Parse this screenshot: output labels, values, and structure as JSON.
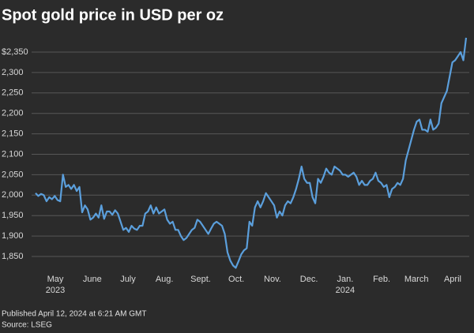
{
  "chart_data": {
    "type": "line",
    "title": "Spot gold price in USD per oz",
    "published": "Published April 12, 2024 at 6:21 AM GMT",
    "source": "Source: LSEG",
    "color": "#5b9fdc",
    "grid": true,
    "xlim": [
      0,
      157
    ],
    "ylim": [
      1810,
      2390
    ],
    "yticks": [
      {
        "value": 2350,
        "label": "$2,350"
      },
      {
        "value": 2300,
        "label": "2,300"
      },
      {
        "value": 2250,
        "label": "2,250"
      },
      {
        "value": 2200,
        "label": "2,200"
      },
      {
        "value": 2150,
        "label": "2,150"
      },
      {
        "value": 2100,
        "label": "2,100"
      },
      {
        "value": 2050,
        "label": "2,050"
      },
      {
        "value": 2000,
        "label": "2,000"
      },
      {
        "value": 1950,
        "label": "1,950"
      },
      {
        "value": 1900,
        "label": "1,900"
      },
      {
        "value": 1850,
        "label": "1,850"
      }
    ],
    "xticks": [
      {
        "value": 7.2,
        "label": "May",
        "year": "2023"
      },
      {
        "value": 20.7,
        "label": "June"
      },
      {
        "value": 33.7,
        "label": "July"
      },
      {
        "value": 47.0,
        "label": "Aug."
      },
      {
        "value": 60.2,
        "label": "Sept."
      },
      {
        "value": 73.2,
        "label": "Oct."
      },
      {
        "value": 86.4,
        "label": "Nov."
      },
      {
        "value": 99.7,
        "label": "Dec."
      },
      {
        "value": 112.9,
        "label": "Jan.",
        "year": "2024"
      },
      {
        "value": 126.2,
        "label": "Feb."
      },
      {
        "value": 138.9,
        "label": "March"
      },
      {
        "value": 152.1,
        "label": "April"
      }
    ],
    "values": [
      2005,
      1998,
      2003,
      2000,
      1985,
      1995,
      1990,
      1998,
      1988,
      1985,
      2050,
      2020,
      2025,
      2015,
      2025,
      2010,
      2020,
      1958,
      1975,
      1965,
      1940,
      1945,
      1955,
      1945,
      1975,
      1942,
      1960,
      1960,
      1952,
      1963,
      1955,
      1935,
      1915,
      1920,
      1910,
      1925,
      1918,
      1915,
      1925,
      1925,
      1955,
      1960,
      1975,
      1955,
      1970,
      1955,
      1960,
      1965,
      1940,
      1930,
      1935,
      1915,
      1915,
      1900,
      1890,
      1895,
      1905,
      1915,
      1920,
      1940,
      1935,
      1925,
      1915,
      1905,
      1918,
      1930,
      1935,
      1930,
      1925,
      1905,
      1860,
      1840,
      1828,
      1822,
      1838,
      1855,
      1865,
      1870,
      1935,
      1925,
      1970,
      1985,
      1970,
      1985,
      2005,
      1995,
      1985,
      1975,
      1945,
      1960,
      1950,
      1975,
      1985,
      1980,
      1995,
      2015,
      2040,
      2070,
      2040,
      2030,
      2030,
      1995,
      1980,
      2040,
      2030,
      2045,
      2065,
      2055,
      2050,
      2070,
      2065,
      2060,
      2050,
      2050,
      2045,
      2050,
      2055,
      2045,
      2025,
      2035,
      2025,
      2025,
      2035,
      2040,
      2055,
      2035,
      2030,
      2020,
      2025,
      1995,
      2015,
      2020,
      2030,
      2025,
      2040,
      2085,
      2110,
      2135,
      2160,
      2180,
      2185,
      2160,
      2160,
      2155,
      2185,
      2160,
      2165,
      2175,
      2225,
      2240,
      2255,
      2290,
      2325,
      2330,
      2340,
      2350,
      2330,
      2385
    ]
  }
}
